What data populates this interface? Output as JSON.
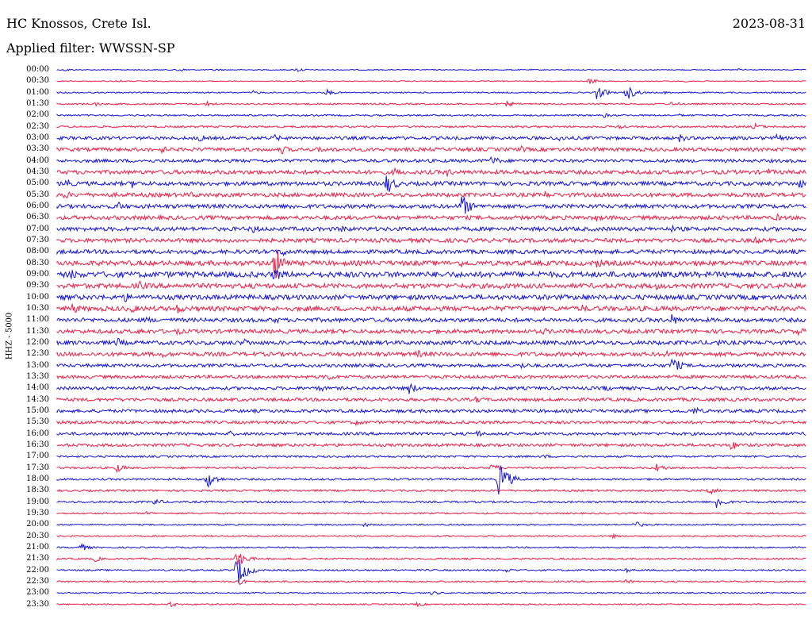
{
  "header": {
    "station": "HC Knossos, Crete Isl.",
    "date": "2023-08-31",
    "filter": "Applied filter: WWSSN-SP"
  },
  "channel_label": "HHZ - 5000",
  "colors": {
    "blue": "#1414dc",
    "red": "#f01e46"
  },
  "rows": [
    {
      "label": "00:00",
      "color": "blue",
      "noise": 0.6,
      "events": [
        {
          "t": 0.01,
          "a": 2
        },
        {
          "t": 0.16,
          "a": 3
        },
        {
          "t": 0.21,
          "a": 2
        },
        {
          "t": 0.32,
          "a": 3
        },
        {
          "t": 0.91,
          "a": 2
        }
      ]
    },
    {
      "label": "00:30",
      "color": "red",
      "noise": 0.6,
      "events": [
        {
          "t": 0.08,
          "a": 2
        },
        {
          "t": 0.71,
          "a": 4
        },
        {
          "t": 0.84,
          "a": 2
        }
      ]
    },
    {
      "label": "01:00",
      "color": "blue",
      "noise": 0.8,
      "events": [
        {
          "t": 0.26,
          "a": 3
        },
        {
          "t": 0.36,
          "a": 4
        },
        {
          "t": 0.72,
          "a": 9
        },
        {
          "t": 0.76,
          "a": 10
        },
        {
          "t": 0.81,
          "a": 2
        }
      ]
    },
    {
      "label": "01:30",
      "color": "red",
      "noise": 1.0,
      "events": [
        {
          "t": 0.05,
          "a": 3
        },
        {
          "t": 0.2,
          "a": 4
        },
        {
          "t": 0.6,
          "a": 4
        },
        {
          "t": 0.82,
          "a": 3
        }
      ]
    },
    {
      "label": "02:00",
      "color": "blue",
      "noise": 1.0,
      "events": [
        {
          "t": 0.73,
          "a": 3
        },
        {
          "t": 0.83,
          "a": 2
        }
      ]
    },
    {
      "label": "02:30",
      "color": "red",
      "noise": 1.2,
      "events": [
        {
          "t": 0.75,
          "a": 4
        },
        {
          "t": 0.93,
          "a": 5
        }
      ]
    },
    {
      "label": "03:00",
      "color": "blue",
      "noise": 2.0,
      "events": [
        {
          "t": 0.19,
          "a": 5
        },
        {
          "t": 0.29,
          "a": 5
        },
        {
          "t": 0.67,
          "a": 5
        },
        {
          "t": 0.83,
          "a": 6
        },
        {
          "t": 0.96,
          "a": 5
        }
      ]
    },
    {
      "label": "03:30",
      "color": "red",
      "noise": 2.2,
      "events": [
        {
          "t": 0.14,
          "a": 5
        },
        {
          "t": 0.3,
          "a": 6
        },
        {
          "t": 0.35,
          "a": 5
        },
        {
          "t": 0.62,
          "a": 5
        },
        {
          "t": 0.72,
          "a": 5
        }
      ]
    },
    {
      "label": "04:00",
      "color": "blue",
      "noise": 2.0,
      "events": [
        {
          "t": 0.58,
          "a": 7
        }
      ]
    },
    {
      "label": "04:30",
      "color": "red",
      "noise": 2.5,
      "events": [
        {
          "t": 0.45,
          "a": 6
        },
        {
          "t": 0.52,
          "a": 6
        },
        {
          "t": 0.95,
          "a": 5
        }
      ]
    },
    {
      "label": "05:00",
      "color": "blue",
      "noise": 2.5,
      "events": [
        {
          "t": 0.01,
          "a": 8
        },
        {
          "t": 0.1,
          "a": 6
        },
        {
          "t": 0.44,
          "a": 14
        },
        {
          "t": 0.99,
          "a": 7
        }
      ]
    },
    {
      "label": "05:30",
      "color": "red",
      "noise": 2.5,
      "events": [
        {
          "t": 0.01,
          "a": 6
        },
        {
          "t": 0.18,
          "a": 5
        },
        {
          "t": 0.65,
          "a": 6
        }
      ]
    },
    {
      "label": "06:00",
      "color": "blue",
      "noise": 2.5,
      "events": [
        {
          "t": 0.08,
          "a": 7
        },
        {
          "t": 0.31,
          "a": 5
        },
        {
          "t": 0.54,
          "a": 16
        }
      ]
    },
    {
      "label": "06:30",
      "color": "red",
      "noise": 2.5,
      "events": [
        {
          "t": 0.72,
          "a": 5
        },
        {
          "t": 0.96,
          "a": 5
        }
      ]
    },
    {
      "label": "07:00",
      "color": "blue",
      "noise": 2.5,
      "events": [
        {
          "t": 0.26,
          "a": 7
        },
        {
          "t": 0.38,
          "a": 6
        },
        {
          "t": 0.82,
          "a": 5
        }
      ]
    },
    {
      "label": "07:30",
      "color": "red",
      "noise": 2.5,
      "events": [
        {
          "t": 0.5,
          "a": 5
        },
        {
          "t": 0.7,
          "a": 5
        },
        {
          "t": 0.93,
          "a": 6
        }
      ]
    },
    {
      "label": "08:00",
      "color": "blue",
      "noise": 2.5,
      "events": [
        {
          "t": 0.18,
          "a": 5
        },
        {
          "t": 0.3,
          "a": 7
        },
        {
          "t": 0.78,
          "a": 5
        }
      ]
    },
    {
      "label": "08:30",
      "color": "red",
      "noise": 3.0,
      "events": [
        {
          "t": 0.29,
          "a": 24
        },
        {
          "t": 0.54,
          "a": 6
        },
        {
          "t": 0.72,
          "a": 7
        },
        {
          "t": 0.99,
          "a": 6
        }
      ]
    },
    {
      "label": "09:00",
      "color": "blue",
      "noise": 3.5,
      "events": [
        {
          "t": 0.02,
          "a": 7
        },
        {
          "t": 0.29,
          "a": 10
        },
        {
          "t": 0.64,
          "a": 6
        }
      ]
    },
    {
      "label": "09:30",
      "color": "red",
      "noise": 3.0,
      "events": [
        {
          "t": 0.11,
          "a": 7
        },
        {
          "t": 0.59,
          "a": 6
        },
        {
          "t": 0.8,
          "a": 5
        },
        {
          "t": 0.97,
          "a": 6
        }
      ]
    },
    {
      "label": "10:00",
      "color": "blue",
      "noise": 3.0,
      "events": [
        {
          "t": 0.09,
          "a": 7
        },
        {
          "t": 0.7,
          "a": 6
        }
      ]
    },
    {
      "label": "10:30",
      "color": "red",
      "noise": 3.0,
      "events": [
        {
          "t": 0.02,
          "a": 8
        },
        {
          "t": 0.1,
          "a": 6
        },
        {
          "t": 0.16,
          "a": 7
        },
        {
          "t": 0.7,
          "a": 6
        }
      ]
    },
    {
      "label": "11:00",
      "color": "blue",
      "noise": 2.5,
      "events": [
        {
          "t": 0.12,
          "a": 5
        },
        {
          "t": 0.29,
          "a": 5
        },
        {
          "t": 0.82,
          "a": 8
        }
      ]
    },
    {
      "label": "11:30",
      "color": "red",
      "noise": 2.5,
      "events": [
        {
          "t": 0.11,
          "a": 5
        },
        {
          "t": 0.16,
          "a": 5
        },
        {
          "t": 0.65,
          "a": 5
        },
        {
          "t": 0.99,
          "a": 6
        }
      ]
    },
    {
      "label": "12:00",
      "color": "blue",
      "noise": 2.5,
      "events": [
        {
          "t": 0.08,
          "a": 7
        },
        {
          "t": 0.25,
          "a": 6
        },
        {
          "t": 0.55,
          "a": 6
        },
        {
          "t": 0.88,
          "a": 5
        }
      ]
    },
    {
      "label": "12:30",
      "color": "red",
      "noise": 2.5,
      "events": [
        {
          "t": 0.14,
          "a": 5
        },
        {
          "t": 0.48,
          "a": 6
        },
        {
          "t": 0.81,
          "a": 6
        }
      ]
    },
    {
      "label": "13:00",
      "color": "blue",
      "noise": 2.0,
      "events": [
        {
          "t": 0.62,
          "a": 5
        },
        {
          "t": 0.82,
          "a": 12
        }
      ]
    },
    {
      "label": "13:30",
      "color": "red",
      "noise": 2.0,
      "events": [
        {
          "t": 0.36,
          "a": 6
        }
      ]
    },
    {
      "label": "14:00",
      "color": "blue",
      "noise": 2.0,
      "events": [
        {
          "t": 0.35,
          "a": 5
        },
        {
          "t": 0.47,
          "a": 8
        },
        {
          "t": 0.73,
          "a": 5
        }
      ]
    },
    {
      "label": "14:30",
      "color": "red",
      "noise": 2.0,
      "events": [
        {
          "t": 0.56,
          "a": 5
        }
      ]
    },
    {
      "label": "15:00",
      "color": "blue",
      "noise": 2.0,
      "events": [
        {
          "t": 0.85,
          "a": 6
        }
      ]
    },
    {
      "label": "15:30",
      "color": "red",
      "noise": 1.8,
      "events": [
        {
          "t": 0.4,
          "a": 5
        },
        {
          "t": 0.93,
          "a": 4
        }
      ]
    },
    {
      "label": "16:00",
      "color": "blue",
      "noise": 1.8,
      "events": [
        {
          "t": 0.23,
          "a": 4
        },
        {
          "t": 0.56,
          "a": 5
        }
      ]
    },
    {
      "label": "16:30",
      "color": "red",
      "noise": 1.8,
      "events": [
        {
          "t": 0.9,
          "a": 7
        }
      ]
    },
    {
      "label": "17:00",
      "color": "blue",
      "noise": 1.2,
      "events": [
        {
          "t": 0.65,
          "a": 3
        }
      ]
    },
    {
      "label": "17:30",
      "color": "red",
      "noise": 1.2,
      "events": [
        {
          "t": 0.08,
          "a": 6
        },
        {
          "t": 0.58,
          "a": 6
        },
        {
          "t": 0.8,
          "a": 6
        }
      ]
    },
    {
      "label": "18:00",
      "color": "blue",
      "noise": 1.2,
      "events": [
        {
          "t": 0.2,
          "a": 12
        },
        {
          "t": 0.59,
          "a": 24
        }
      ]
    },
    {
      "label": "18:30",
      "color": "red",
      "noise": 1.2,
      "events": [
        {
          "t": 0.87,
          "a": 5
        }
      ]
    },
    {
      "label": "19:00",
      "color": "blue",
      "noise": 1.2,
      "events": [
        {
          "t": 0.13,
          "a": 5
        },
        {
          "t": 0.88,
          "a": 9
        }
      ]
    },
    {
      "label": "19:30",
      "color": "red",
      "noise": 1.0,
      "events": [
        {
          "t": 0.12,
          "a": 3
        }
      ]
    },
    {
      "label": "20:00",
      "color": "blue",
      "noise": 0.9,
      "events": [
        {
          "t": 0.41,
          "a": 3
        },
        {
          "t": 0.77,
          "a": 5
        }
      ]
    },
    {
      "label": "20:30",
      "color": "red",
      "noise": 0.9,
      "events": [
        {
          "t": 0.74,
          "a": 3
        }
      ]
    },
    {
      "label": "21:00",
      "color": "blue",
      "noise": 0.9,
      "events": [
        {
          "t": 0.03,
          "a": 6
        }
      ]
    },
    {
      "label": "21:30",
      "color": "red",
      "noise": 1.0,
      "events": [
        {
          "t": 0.05,
          "a": 4
        },
        {
          "t": 0.24,
          "a": 12
        }
      ]
    },
    {
      "label": "22:00",
      "color": "blue",
      "noise": 1.0,
      "events": [
        {
          "t": 0.24,
          "a": 22
        },
        {
          "t": 0.6,
          "a": 3
        },
        {
          "t": 0.76,
          "a": 3
        }
      ]
    },
    {
      "label": "22:30",
      "color": "red",
      "noise": 1.0,
      "events": [
        {
          "t": 0.24,
          "a": 5
        },
        {
          "t": 0.76,
          "a": 3
        }
      ]
    },
    {
      "label": "23:00",
      "color": "blue",
      "noise": 0.8,
      "events": [
        {
          "t": 0.5,
          "a": 3
        }
      ]
    },
    {
      "label": "23:30",
      "color": "red",
      "noise": 0.8,
      "events": [
        {
          "t": 0.15,
          "a": 4
        },
        {
          "t": 0.48,
          "a": 3
        }
      ]
    }
  ]
}
